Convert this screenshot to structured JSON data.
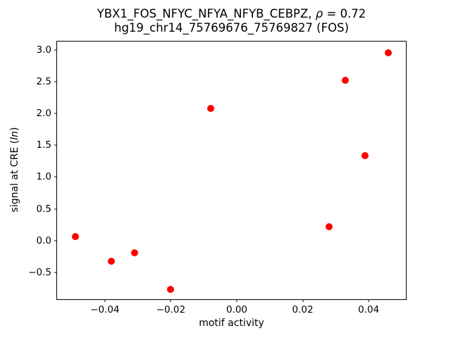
{
  "figure": {
    "title_line1": {
      "prefix": "YBX1_FOS_NFYC_NFYA_NFYB_CEBPZ, ",
      "rho_symbol": "ρ",
      "value_suffix": " = 0.72"
    },
    "title_line2": "hg19_chr14_75769676_75769827 (FOS)",
    "xaxis_label": "motif activity",
    "yaxis_label": {
      "prefix": "signal at CRE (",
      "italic": "ln",
      "suffix": ")"
    }
  },
  "chart_data": {
    "type": "scatter",
    "title": "YBX1_FOS_NFYC_NFYA_NFYB_CEBPZ, ρ = 0.72",
    "subtitle": "hg19_chr14_75769676_75769827 (FOS)",
    "xlabel": "motif activity",
    "ylabel": "signal at CRE (ln)",
    "correlation_rho": 0.72,
    "marker_color": "#ff0000",
    "marker_shape": "circle",
    "grid": false,
    "legend": null,
    "xlim": [
      -0.0545,
      0.0513
    ],
    "ylim": [
      -0.92,
      3.13
    ],
    "xticks": [
      -0.04,
      -0.02,
      0.0,
      0.02,
      0.04
    ],
    "yticks": [
      -0.5,
      0.0,
      0.5,
      1.0,
      1.5,
      2.0,
      2.5,
      3.0
    ],
    "points": [
      {
        "x": -0.049,
        "y": 0.06
      },
      {
        "x": -0.038,
        "y": -0.32
      },
      {
        "x": -0.031,
        "y": -0.19
      },
      {
        "x": -0.02,
        "y": -0.77
      },
      {
        "x": -0.008,
        "y": 2.08
      },
      {
        "x": 0.028,
        "y": 0.22
      },
      {
        "x": 0.033,
        "y": 2.52
      },
      {
        "x": 0.039,
        "y": 1.34
      },
      {
        "x": 0.046,
        "y": 2.95
      }
    ]
  }
}
